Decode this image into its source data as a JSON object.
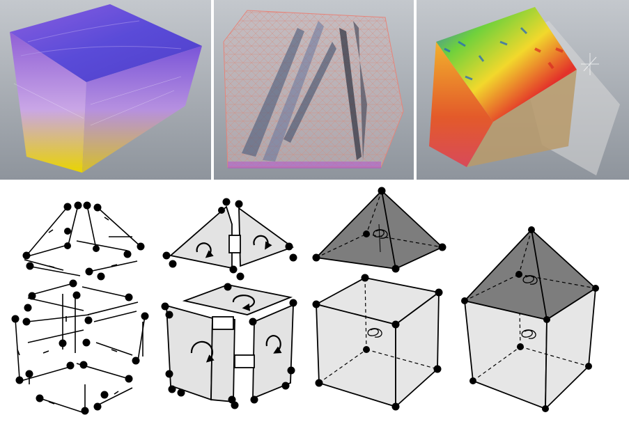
{
  "colors": {
    "viewport_top": "#c2c6cb",
    "viewport_bottom": "#8b919a",
    "line": "#000000",
    "light_face": "#e6e6e6",
    "dark_face": "#7d7d7d",
    "cube1_top": "#6a4ed6",
    "cube1_yellow": "#e8d400",
    "heat_red": "#e3312a",
    "heat_green": "#6fd13c",
    "heat_blue": "#2f6fd8"
  },
  "panels": [
    {
      "id": "purple-yellow-cube"
    },
    {
      "id": "wireframe-fracture-cube"
    },
    {
      "id": "heatmap-cube"
    }
  ],
  "diagrams": [
    {
      "id": "edge-decomposition"
    },
    {
      "id": "face-circulation"
    },
    {
      "id": "pyramid-cube-separated"
    },
    {
      "id": "pyramid-cube-joined"
    }
  ]
}
